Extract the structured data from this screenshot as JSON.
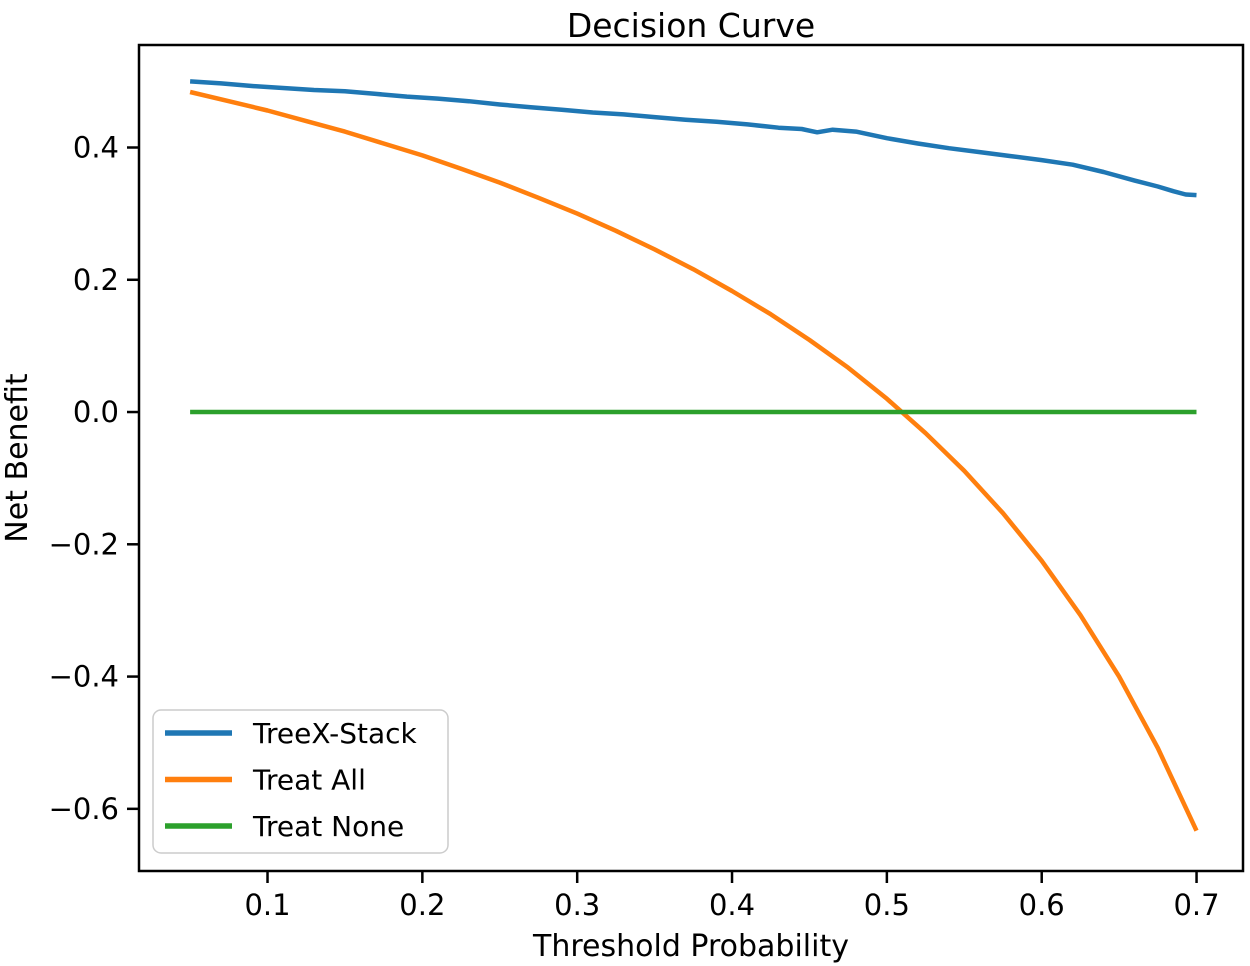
{
  "chart_data": {
    "type": "line",
    "title": "Decision Curve",
    "xlabel": "Threshold Probability",
    "ylabel": "Net Benefit",
    "xlim": [
      0.017,
      0.73
    ],
    "ylim": [
      -0.694,
      0.555
    ],
    "grid": false,
    "background_color": "#ffffff",
    "spine_color": "#000000",
    "x_ticks": [
      {
        "value": 0.1,
        "label": "0.1"
      },
      {
        "value": 0.2,
        "label": "0.2"
      },
      {
        "value": 0.3,
        "label": "0.3"
      },
      {
        "value": 0.4,
        "label": "0.4"
      },
      {
        "value": 0.5,
        "label": "0.5"
      },
      {
        "value": 0.6,
        "label": "0.6"
      },
      {
        "value": 0.7,
        "label": "0.7"
      }
    ],
    "y_ticks": [
      {
        "value": 0.4,
        "label": "0.4"
      },
      {
        "value": 0.2,
        "label": "0.2"
      },
      {
        "value": 0.0,
        "label": "0.0"
      },
      {
        "value": -0.2,
        "label": "−0.2"
      },
      {
        "value": -0.4,
        "label": "−0.4"
      },
      {
        "value": -0.6,
        "label": "−0.6"
      }
    ],
    "legend": {
      "position": "lower left",
      "edge_color": "#cccccc",
      "face_color": "#ffffff"
    },
    "series": [
      {
        "name": "TreeX-Stack",
        "color": "#1f77b4",
        "points": [
          [
            0.05,
            0.5
          ],
          [
            0.07,
            0.497
          ],
          [
            0.09,
            0.493
          ],
          [
            0.11,
            0.49
          ],
          [
            0.13,
            0.487
          ],
          [
            0.15,
            0.485
          ],
          [
            0.17,
            0.481
          ],
          [
            0.19,
            0.477
          ],
          [
            0.21,
            0.474
          ],
          [
            0.23,
            0.47
          ],
          [
            0.25,
            0.465
          ],
          [
            0.27,
            0.461
          ],
          [
            0.29,
            0.457
          ],
          [
            0.31,
            0.453
          ],
          [
            0.33,
            0.45
          ],
          [
            0.35,
            0.446
          ],
          [
            0.37,
            0.442
          ],
          [
            0.39,
            0.439
          ],
          [
            0.41,
            0.435
          ],
          [
            0.43,
            0.43
          ],
          [
            0.445,
            0.428
          ],
          [
            0.455,
            0.423
          ],
          [
            0.465,
            0.427
          ],
          [
            0.48,
            0.424
          ],
          [
            0.5,
            0.414
          ],
          [
            0.52,
            0.406
          ],
          [
            0.54,
            0.399
          ],
          [
            0.56,
            0.393
          ],
          [
            0.58,
            0.387
          ],
          [
            0.6,
            0.381
          ],
          [
            0.62,
            0.374
          ],
          [
            0.64,
            0.363
          ],
          [
            0.66,
            0.35
          ],
          [
            0.675,
            0.341
          ],
          [
            0.685,
            0.334
          ],
          [
            0.693,
            0.329
          ],
          [
            0.7,
            0.328
          ]
        ]
      },
      {
        "name": "Treat All",
        "color": "#ff7f0e",
        "points": [
          [
            0.05,
            0.484
          ],
          [
            0.075,
            0.47
          ],
          [
            0.1,
            0.456
          ],
          [
            0.125,
            0.44
          ],
          [
            0.15,
            0.424
          ],
          [
            0.175,
            0.406
          ],
          [
            0.2,
            0.388
          ],
          [
            0.225,
            0.368
          ],
          [
            0.25,
            0.347
          ],
          [
            0.275,
            0.324
          ],
          [
            0.3,
            0.3
          ],
          [
            0.325,
            0.274
          ],
          [
            0.35,
            0.246
          ],
          [
            0.375,
            0.216
          ],
          [
            0.4,
            0.183
          ],
          [
            0.425,
            0.148
          ],
          [
            0.45,
            0.109
          ],
          [
            0.475,
            0.067
          ],
          [
            0.5,
            0.02
          ],
          [
            0.525,
            -0.032
          ],
          [
            0.55,
            -0.089
          ],
          [
            0.575,
            -0.153
          ],
          [
            0.6,
            -0.225
          ],
          [
            0.625,
            -0.307
          ],
          [
            0.65,
            -0.4
          ],
          [
            0.675,
            -0.508
          ],
          [
            0.7,
            -0.633
          ]
        ]
      },
      {
        "name": "Treat None",
        "color": "#2ca02c",
        "points": [
          [
            0.05,
            0.0
          ],
          [
            0.7,
            0.0
          ]
        ]
      }
    ]
  }
}
